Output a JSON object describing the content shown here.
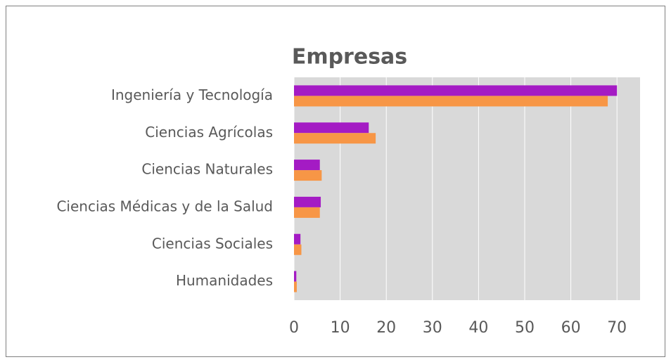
{
  "chart_data": {
    "type": "hbar",
    "title": "Empresas",
    "categories": [
      "Ingeniería y Tecnología",
      "Ciencias Agrícolas",
      "Ciencias Naturales",
      "Ciencias Médicas y de la Salud",
      "Ciencias Sociales",
      "Humanidades"
    ],
    "series": [
      {
        "color": "#a41bc4",
        "values": [
          70,
          16.2,
          5.6,
          5.8,
          1.4,
          0.5
        ]
      },
      {
        "color": "#f79646",
        "values": [
          68,
          17.7,
          6,
          5.6,
          1.6,
          0.6
        ]
      }
    ],
    "xlim": [
      0,
      75
    ],
    "xticks": [
      0,
      10,
      20,
      30,
      40,
      50,
      60,
      70
    ],
    "grid": true
  }
}
